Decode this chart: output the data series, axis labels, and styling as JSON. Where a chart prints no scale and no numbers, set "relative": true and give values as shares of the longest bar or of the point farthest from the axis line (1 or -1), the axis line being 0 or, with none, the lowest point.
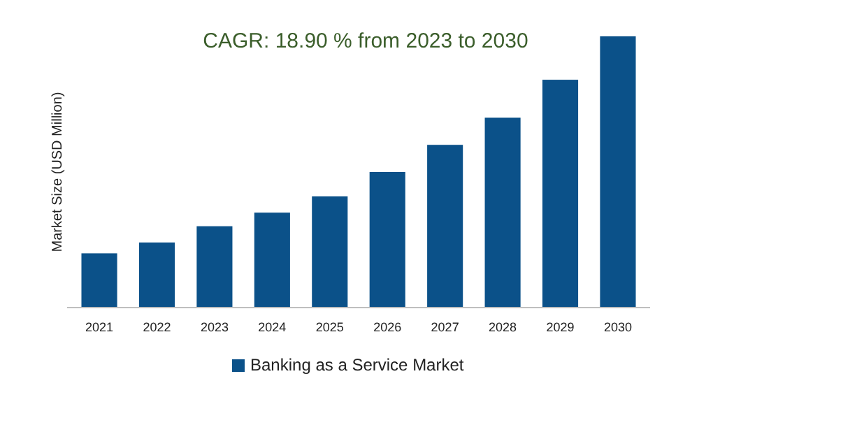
{
  "chart_data": {
    "type": "bar",
    "title": "CAGR: 18.90 % from 2023 to 2030",
    "ylabel": "Market Size (USD Million)",
    "categories": [
      "2021",
      "2022",
      "2023",
      "2024",
      "2025",
      "2026",
      "2027",
      "2028",
      "2029",
      "2030"
    ],
    "series": [
      {
        "name": "Banking as a Service Market",
        "color": "#0b5189",
        "values": [
          0.2,
          0.24,
          0.3,
          0.35,
          0.41,
          0.5,
          0.6,
          0.7,
          0.84,
          1
        ]
      }
    ],
    "relative": true,
    "legend": "bottom"
  }
}
